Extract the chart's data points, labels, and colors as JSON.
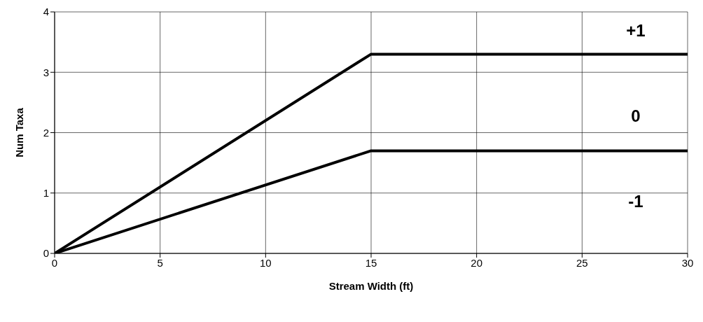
{
  "chart_data": {
    "type": "line",
    "xlabel": "Stream Width (ft)",
    "ylabel": "Num Taxa",
    "xlim": [
      0,
      30
    ],
    "xticks": [
      0,
      5,
      10,
      15,
      20,
      25,
      30
    ],
    "ylim": [
      0,
      4
    ],
    "yticks": [
      0,
      1,
      2,
      3,
      4
    ],
    "grid": true,
    "marker": "none",
    "line_style": "solid",
    "series": [
      {
        "color": "#000000",
        "x": [
          0,
          15,
          30
        ],
        "values": [
          0,
          3.3,
          3.3
        ]
      },
      {
        "color": "#000000",
        "x": [
          0,
          15,
          30
        ],
        "values": [
          0,
          1.7,
          1.7
        ]
      }
    ],
    "annotations": [
      "+1",
      "0",
      "-1"
    ]
  }
}
